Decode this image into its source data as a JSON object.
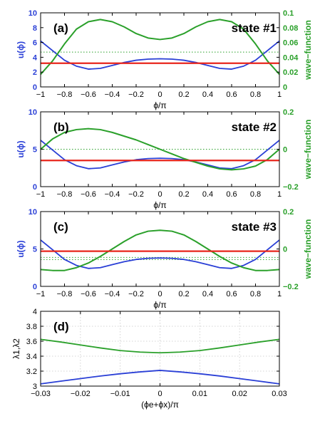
{
  "colors": {
    "potential": "#2a3fd6",
    "wave": "#2aa02a",
    "energy": "#e8261c",
    "lambda1": "#2a3fd6",
    "lambda2": "#2aa02a",
    "grid": "#c8c8c8"
  },
  "chart_data": [
    {
      "type": "line",
      "panel_label": "(a)",
      "state_label": "state #1",
      "xlabel": "ϕ/π",
      "ylabel_left": "u(ϕ)",
      "ylabel_right": "wave−function",
      "xlim": [
        -1,
        1
      ],
      "ylim_left": [
        0,
        10
      ],
      "ylim_right": [
        0,
        0.1
      ],
      "xticks": [
        -1,
        -0.8,
        -0.6,
        -0.4,
        -0.2,
        0,
        0.2,
        0.4,
        0.6,
        0.8,
        1
      ],
      "xtick_labels": [
        "−1",
        "−0.8",
        "−0.6",
        "−0.4",
        "−0.2",
        "0",
        "0.2",
        "0.4",
        "0.6",
        "0.8",
        "1"
      ],
      "yticks_left": [
        0,
        2,
        4,
        6,
        8,
        10
      ],
      "ytick_labels_left": [
        "0",
        "2",
        "4",
        "6",
        "8",
        "10"
      ],
      "yticks_right": [
        0,
        0.02,
        0.04,
        0.06,
        0.08,
        0.1
      ],
      "ytick_labels_right": [
        "0",
        "0.02",
        "0.04",
        "0.06",
        "0.08",
        "0.1"
      ],
      "energy_level": 3.2,
      "zero_level_right": 0.047,
      "series": [
        {
          "role": "potential",
          "x": [
            -1,
            -0.9,
            -0.8,
            -0.7,
            -0.6,
            -0.5,
            -0.4,
            -0.3,
            -0.2,
            -0.1,
            0,
            0.1,
            0.2,
            0.3,
            0.4,
            0.5,
            0.6,
            0.7,
            0.8,
            0.9,
            1
          ],
          "values": [
            6.2,
            4.9,
            3.6,
            2.8,
            2.4,
            2.5,
            2.9,
            3.3,
            3.6,
            3.75,
            3.8,
            3.75,
            3.6,
            3.3,
            2.9,
            2.5,
            2.4,
            2.8,
            3.6,
            4.9,
            6.2
          ]
        },
        {
          "role": "wave",
          "x": [
            -1,
            -0.9,
            -0.8,
            -0.7,
            -0.6,
            -0.5,
            -0.4,
            -0.3,
            -0.2,
            -0.1,
            0,
            0.1,
            0.2,
            0.3,
            0.4,
            0.5,
            0.6,
            0.7,
            0.8,
            0.9,
            1
          ],
          "values": [
            0.017,
            0.035,
            0.058,
            0.078,
            0.088,
            0.091,
            0.088,
            0.081,
            0.072,
            0.066,
            0.064,
            0.066,
            0.072,
            0.081,
            0.088,
            0.091,
            0.088,
            0.078,
            0.058,
            0.035,
            0.017
          ]
        }
      ]
    },
    {
      "type": "line",
      "panel_label": "(b)",
      "state_label": "state #2",
      "xlabel": "ϕ/π",
      "ylabel_left": "u(ϕ)",
      "ylabel_right": "wave−function",
      "xlim": [
        -1,
        1
      ],
      "ylim_left": [
        0,
        10
      ],
      "ylim_right": [
        -0.2,
        0.2
      ],
      "xticks": [
        -1,
        -0.8,
        -0.6,
        -0.4,
        -0.2,
        0,
        0.2,
        0.4,
        0.6,
        0.8,
        1
      ],
      "xtick_labels": [
        "−1",
        "−0.8",
        "−0.6",
        "−0.4",
        "−0.2",
        "0",
        "0.2",
        "0.4",
        "0.6",
        "0.8",
        "1"
      ],
      "yticks_left": [
        0,
        5,
        10
      ],
      "ytick_labels_left": [
        "0",
        "5",
        "10"
      ],
      "yticks_right": [
        -0.2,
        0,
        0.2
      ],
      "ytick_labels_right": [
        "−0.2",
        "0",
        "0.2"
      ],
      "energy_level": 3.5,
      "zero_level_right": 0.0,
      "series": [
        {
          "role": "potential",
          "x": [
            -1,
            -0.9,
            -0.8,
            -0.7,
            -0.6,
            -0.5,
            -0.4,
            -0.3,
            -0.2,
            -0.1,
            0,
            0.1,
            0.2,
            0.3,
            0.4,
            0.5,
            0.6,
            0.7,
            0.8,
            0.9,
            1
          ],
          "values": [
            6.2,
            4.9,
            3.6,
            2.8,
            2.4,
            2.5,
            2.9,
            3.3,
            3.6,
            3.75,
            3.8,
            3.75,
            3.6,
            3.3,
            2.9,
            2.5,
            2.4,
            2.8,
            3.6,
            4.9,
            6.2
          ]
        },
        {
          "role": "wave",
          "x": [
            -1,
            -0.9,
            -0.8,
            -0.7,
            -0.6,
            -0.5,
            -0.4,
            -0.3,
            -0.2,
            -0.1,
            0,
            0.1,
            0.2,
            0.3,
            0.4,
            0.5,
            0.6,
            0.7,
            0.8,
            0.9,
            1
          ],
          "values": [
            0.0,
            0.055,
            0.09,
            0.105,
            0.11,
            0.105,
            0.09,
            0.07,
            0.05,
            0.025,
            0.0,
            -0.025,
            -0.05,
            -0.07,
            -0.09,
            -0.105,
            -0.11,
            -0.105,
            -0.09,
            -0.055,
            0.0
          ]
        }
      ]
    },
    {
      "type": "line",
      "panel_label": "(c)",
      "state_label": "state #3",
      "xlabel": "ϕ/π",
      "ylabel_left": "u(ϕ)",
      "ylabel_right": "wave−function",
      "xlim": [
        -1,
        1
      ],
      "ylim_left": [
        0,
        10
      ],
      "ylim_right": [
        -0.2,
        0.2
      ],
      "xticks": [
        -1,
        -0.8,
        -0.6,
        -0.4,
        -0.2,
        0,
        0.2,
        0.4,
        0.6,
        0.8,
        1
      ],
      "xtick_labels": [
        "−1",
        "−0.8",
        "−0.6",
        "−0.4",
        "−0.2",
        "0",
        "0.2",
        "0.4",
        "0.6",
        "0.8",
        "1"
      ],
      "yticks_left": [
        0,
        5,
        10
      ],
      "ytick_labels_left": [
        "0",
        "5",
        "10"
      ],
      "yticks_right": [
        -0.2,
        0,
        0.2
      ],
      "ytick_labels_right": [
        "−0.2",
        "0",
        "0.2"
      ],
      "energy_level": 4.7,
      "zero_level_right": -0.045,
      "series": [
        {
          "role": "potential",
          "x": [
            -1,
            -0.9,
            -0.8,
            -0.7,
            -0.6,
            -0.5,
            -0.4,
            -0.3,
            -0.2,
            -0.1,
            0,
            0.1,
            0.2,
            0.3,
            0.4,
            0.5,
            0.6,
            0.7,
            0.8,
            0.9,
            1
          ],
          "values": [
            6.2,
            4.9,
            3.6,
            2.8,
            2.4,
            2.5,
            2.9,
            3.3,
            3.6,
            3.75,
            3.8,
            3.75,
            3.6,
            3.3,
            2.9,
            2.5,
            2.4,
            2.8,
            3.6,
            4.9,
            6.2
          ]
        },
        {
          "role": "wave",
          "x": [
            -1,
            -0.9,
            -0.8,
            -0.7,
            -0.6,
            -0.5,
            -0.4,
            -0.3,
            -0.2,
            -0.1,
            0,
            0.1,
            0.2,
            0.3,
            0.4,
            0.5,
            0.6,
            0.7,
            0.8,
            0.9,
            1
          ],
          "values": [
            -0.11,
            -0.115,
            -0.115,
            -0.1,
            -0.075,
            -0.04,
            0.0,
            0.04,
            0.075,
            0.095,
            0.1,
            0.095,
            0.075,
            0.04,
            0.0,
            -0.04,
            -0.075,
            -0.1,
            -0.115,
            -0.115,
            -0.11
          ]
        }
      ]
    },
    {
      "type": "line",
      "panel_label": "(d)",
      "xlabel": "(ϕe+ϕx)/π",
      "ylabel": "λ1,λ2",
      "xlim": [
        -0.03,
        0.03
      ],
      "ylim": [
        3,
        4
      ],
      "grid": true,
      "xticks": [
        -0.03,
        -0.02,
        -0.01,
        0,
        0.01,
        0.02,
        0.03
      ],
      "xtick_labels": [
        "−0.03",
        "−0.02",
        "−0.01",
        "0",
        "0.01",
        "0.02",
        "0.03"
      ],
      "yticks": [
        3,
        3.2,
        3.4,
        3.6,
        3.8,
        4
      ],
      "ytick_labels": [
        "3",
        "3.2",
        "3.4",
        "3.6",
        "3.8",
        "4"
      ],
      "series": [
        {
          "role": "lambda1",
          "x": [
            -0.03,
            -0.025,
            -0.02,
            -0.015,
            -0.01,
            -0.005,
            0,
            0.005,
            0.01,
            0.015,
            0.02,
            0.025,
            0.03
          ],
          "values": [
            3.03,
            3.065,
            3.1,
            3.135,
            3.165,
            3.19,
            3.21,
            3.19,
            3.165,
            3.135,
            3.1,
            3.065,
            3.03
          ]
        },
        {
          "role": "lambda2",
          "x": [
            -0.03,
            -0.025,
            -0.02,
            -0.015,
            -0.01,
            -0.005,
            0,
            0.005,
            0.01,
            0.015,
            0.02,
            0.025,
            0.03
          ],
          "values": [
            3.625,
            3.59,
            3.55,
            3.51,
            3.475,
            3.455,
            3.445,
            3.455,
            3.475,
            3.51,
            3.55,
            3.59,
            3.625
          ]
        }
      ]
    }
  ]
}
